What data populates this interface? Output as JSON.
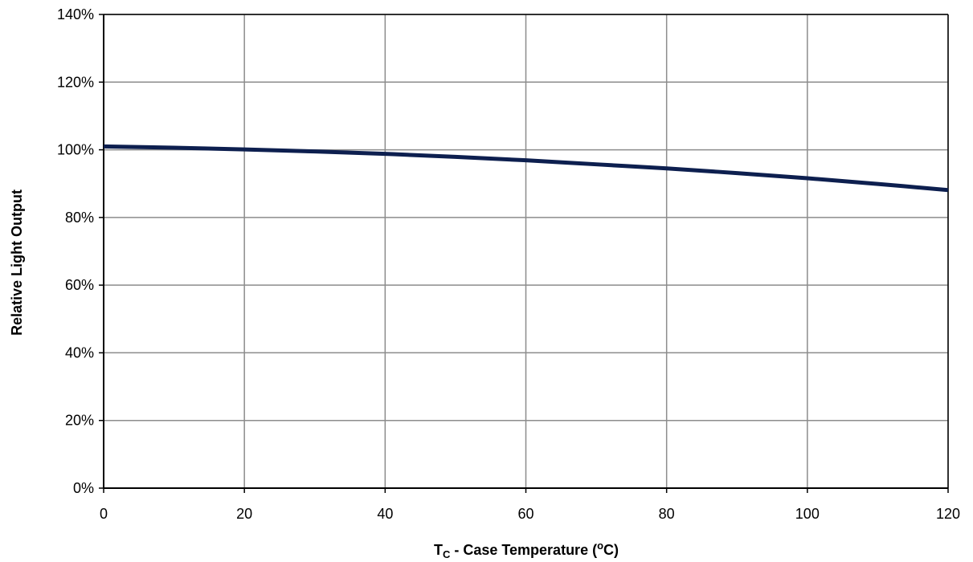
{
  "chart_data": {
    "type": "line",
    "title": "",
    "xlabel": {
      "main": "T",
      "subscript": "C",
      "text": " - Case Temperature (",
      "superscript": "o",
      "unit": "C)"
    },
    "ylabel": "Relative Light Output",
    "xlim": [
      0,
      120
    ],
    "ylim": [
      0,
      140
    ],
    "x_ticks": [
      0,
      20,
      40,
      60,
      80,
      100,
      120
    ],
    "x_tick_labels": [
      "0",
      "20",
      "40",
      "60",
      "80",
      "100",
      "120"
    ],
    "y_ticks": [
      0,
      20,
      40,
      60,
      80,
      100,
      120,
      140
    ],
    "y_tick_labels": [
      "0%",
      "20%",
      "40%",
      "60%",
      "80%",
      "100%",
      "120%",
      "140%"
    ],
    "grid": true,
    "series": [
      {
        "color": "#0d1f4f",
        "x": [
          0,
          10,
          20,
          30,
          40,
          50,
          60,
          70,
          80,
          90,
          100,
          110,
          120
        ],
        "y": [
          101.0,
          100.6,
          100.1,
          99.5,
          98.8,
          97.9,
          96.9,
          95.7,
          94.5,
          93.1,
          91.6,
          89.9,
          88.1
        ]
      }
    ]
  }
}
